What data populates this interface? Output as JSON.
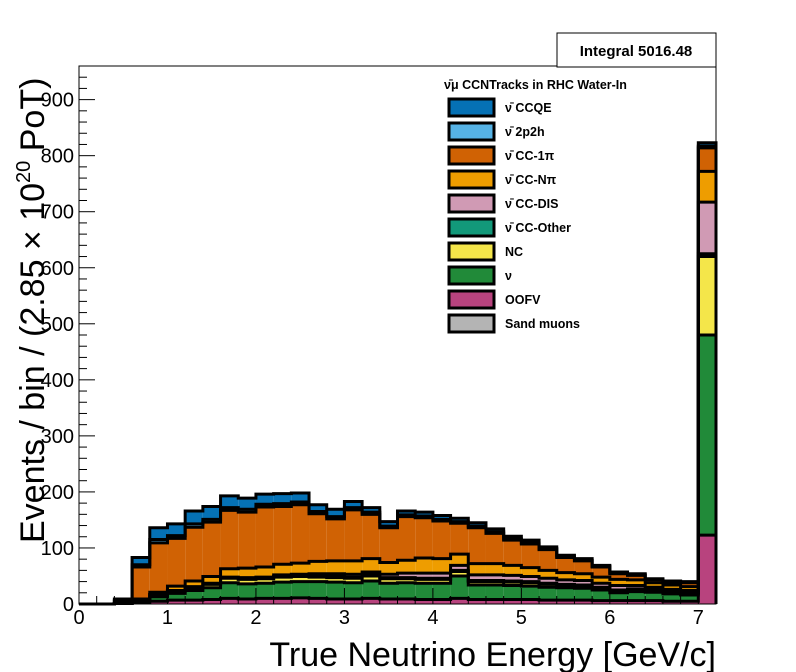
{
  "chart_data": {
    "type": "stacked_histogram",
    "xlabel": "True Neutrino Energy [GeV/c]",
    "ylabel_prefix": "Events / bin / (2.85 × 10",
    "ylabel_exp": "20",
    "ylabel_suffix": " PoT)",
    "stats_label": "Integral 5016.48",
    "legend_title": "ν̄μ CCNTracks in RHC Water-In",
    "xlim": [
      0,
      7.2
    ],
    "ylim": [
      0,
      960
    ],
    "x_ticks": [
      "0",
      "1",
      "2",
      "3",
      "4",
      "5",
      "6",
      "7"
    ],
    "y_ticks": [
      "0",
      "100",
      "200",
      "300",
      "400",
      "500",
      "600",
      "700",
      "800",
      "900"
    ],
    "bin_edges": [
      0,
      0.2,
      0.4,
      0.6,
      0.8,
      1.0,
      1.2,
      1.4,
      1.6,
      1.8,
      2.0,
      2.2,
      2.4,
      2.6,
      2.8,
      3.0,
      3.2,
      3.4,
      3.6,
      3.8,
      4.0,
      4.2,
      4.4,
      4.6,
      4.8,
      5.0,
      5.2,
      5.4,
      5.6,
      5.8,
      6.0,
      6.2,
      6.4,
      6.6,
      6.8,
      7.0,
      7.2
    ],
    "series": [
      {
        "name": "Sand muons",
        "color": "#b4b4b4",
        "values": [
          0,
          0,
          0,
          0,
          0,
          0,
          0,
          0,
          0,
          0,
          0,
          0,
          0,
          0,
          0,
          0,
          0,
          0,
          0,
          0,
          0,
          0,
          0,
          0,
          0,
          0,
          0,
          0,
          0,
          0,
          0,
          0,
          0,
          0,
          0,
          0
        ]
      },
      {
        "name": "OOFV",
        "color": "#b8437e",
        "values": [
          0,
          0,
          1,
          2,
          5,
          7,
          7,
          8,
          10,
          9,
          10,
          10,
          11,
          10,
          9,
          9,
          10,
          9,
          9,
          8,
          8,
          10,
          8,
          8,
          8,
          8,
          7,
          7,
          7,
          6,
          6,
          6,
          6,
          5,
          5,
          123
        ]
      },
      {
        "name": "ν",
        "color": "#218a39",
        "values": [
          0,
          0,
          0,
          5,
          8,
          12,
          17,
          21,
          28,
          27,
          27,
          29,
          29,
          30,
          30,
          29,
          31,
          28,
          29,
          29,
          29,
          40,
          26,
          26,
          25,
          24,
          23,
          22,
          21,
          19,
          14,
          16,
          15,
          13,
          11,
          357
        ]
      },
      {
        "name": "NC",
        "color": "#f4e64a",
        "values": [
          0,
          0,
          0,
          1,
          3,
          4,
          5,
          6,
          8,
          8,
          8,
          9,
          9,
          8,
          8,
          8,
          9,
          8,
          7,
          7,
          7,
          8,
          6,
          6,
          6,
          6,
          5,
          5,
          5,
          4,
          4,
          4,
          3,
          3,
          3,
          140
        ]
      },
      {
        "name": "ν̄ CC-Other",
        "color": "#12997a",
        "values": [
          0,
          0,
          0,
          0,
          1,
          1,
          1,
          1,
          1,
          1,
          1,
          1,
          1,
          2,
          2,
          2,
          2,
          2,
          2,
          2,
          2,
          2,
          2,
          2,
          2,
          2,
          2,
          1,
          1,
          1,
          1,
          1,
          1,
          1,
          1,
          5
        ]
      },
      {
        "name": "ν̄ CC-DIS",
        "color": "#d09ab4",
        "values": [
          0,
          0,
          0,
          0,
          0,
          0,
          1,
          1,
          1,
          2,
          2,
          3,
          3,
          4,
          5,
          5,
          5,
          6,
          8,
          9,
          9,
          9,
          10,
          10,
          10,
          9,
          9,
          8,
          8,
          7,
          8,
          6,
          5,
          4,
          4,
          92
        ]
      },
      {
        "name": "ν̄ CC-Nπ",
        "color": "#ee9d00",
        "values": [
          0,
          0,
          0,
          1,
          4,
          8,
          10,
          12,
          15,
          17,
          18,
          19,
          20,
          22,
          23,
          24,
          24,
          21,
          23,
          27,
          26,
          20,
          20,
          20,
          18,
          16,
          14,
          13,
          12,
          11,
          11,
          10,
          8,
          8,
          7,
          55
        ]
      },
      {
        "name": "ν̄ CC-1π",
        "color": "#d06204",
        "values": [
          0,
          0,
          4,
          57,
          88,
          85,
          96,
          97,
          104,
          100,
          107,
          103,
          104,
          85,
          75,
          91,
          79,
          62,
          78,
          72,
          67,
          55,
          64,
          54,
          45,
          42,
          37,
          27,
          23,
          18,
          10,
          8,
          5,
          5,
          7,
          42
        ]
      },
      {
        "name": "ν̄ 2p2h",
        "color": "#56b3e6",
        "values": [
          0,
          0,
          1,
          4,
          6,
          5,
          6,
          5,
          5,
          5,
          5,
          5,
          5,
          4,
          4,
          4,
          4,
          3,
          3,
          3,
          3,
          3,
          3,
          3,
          2,
          2,
          2,
          1,
          1,
          1,
          1,
          1,
          1,
          1,
          1,
          3
        ]
      },
      {
        "name": "ν̄ CCQE",
        "color": "#0571b5",
        "values": [
          0,
          0,
          3,
          13,
          21,
          21,
          23,
          23,
          21,
          20,
          18,
          18,
          16,
          12,
          13,
          11,
          8,
          8,
          7,
          7,
          7,
          6,
          6,
          5,
          5,
          5,
          3,
          3,
          3,
          2,
          2,
          2,
          1,
          1,
          1,
          6
        ]
      }
    ],
    "legend": {
      "placement": "top-right",
      "order": [
        "ν̄ CCQE",
        "ν̄ 2p2h",
        "ν̄ CC-1π",
        "ν̄ CC-Nπ",
        "ν̄ CC-DIS",
        "ν̄ CC-Other",
        "NC",
        "ν",
        "OOFV",
        "Sand muons"
      ]
    },
    "grid": false
  }
}
